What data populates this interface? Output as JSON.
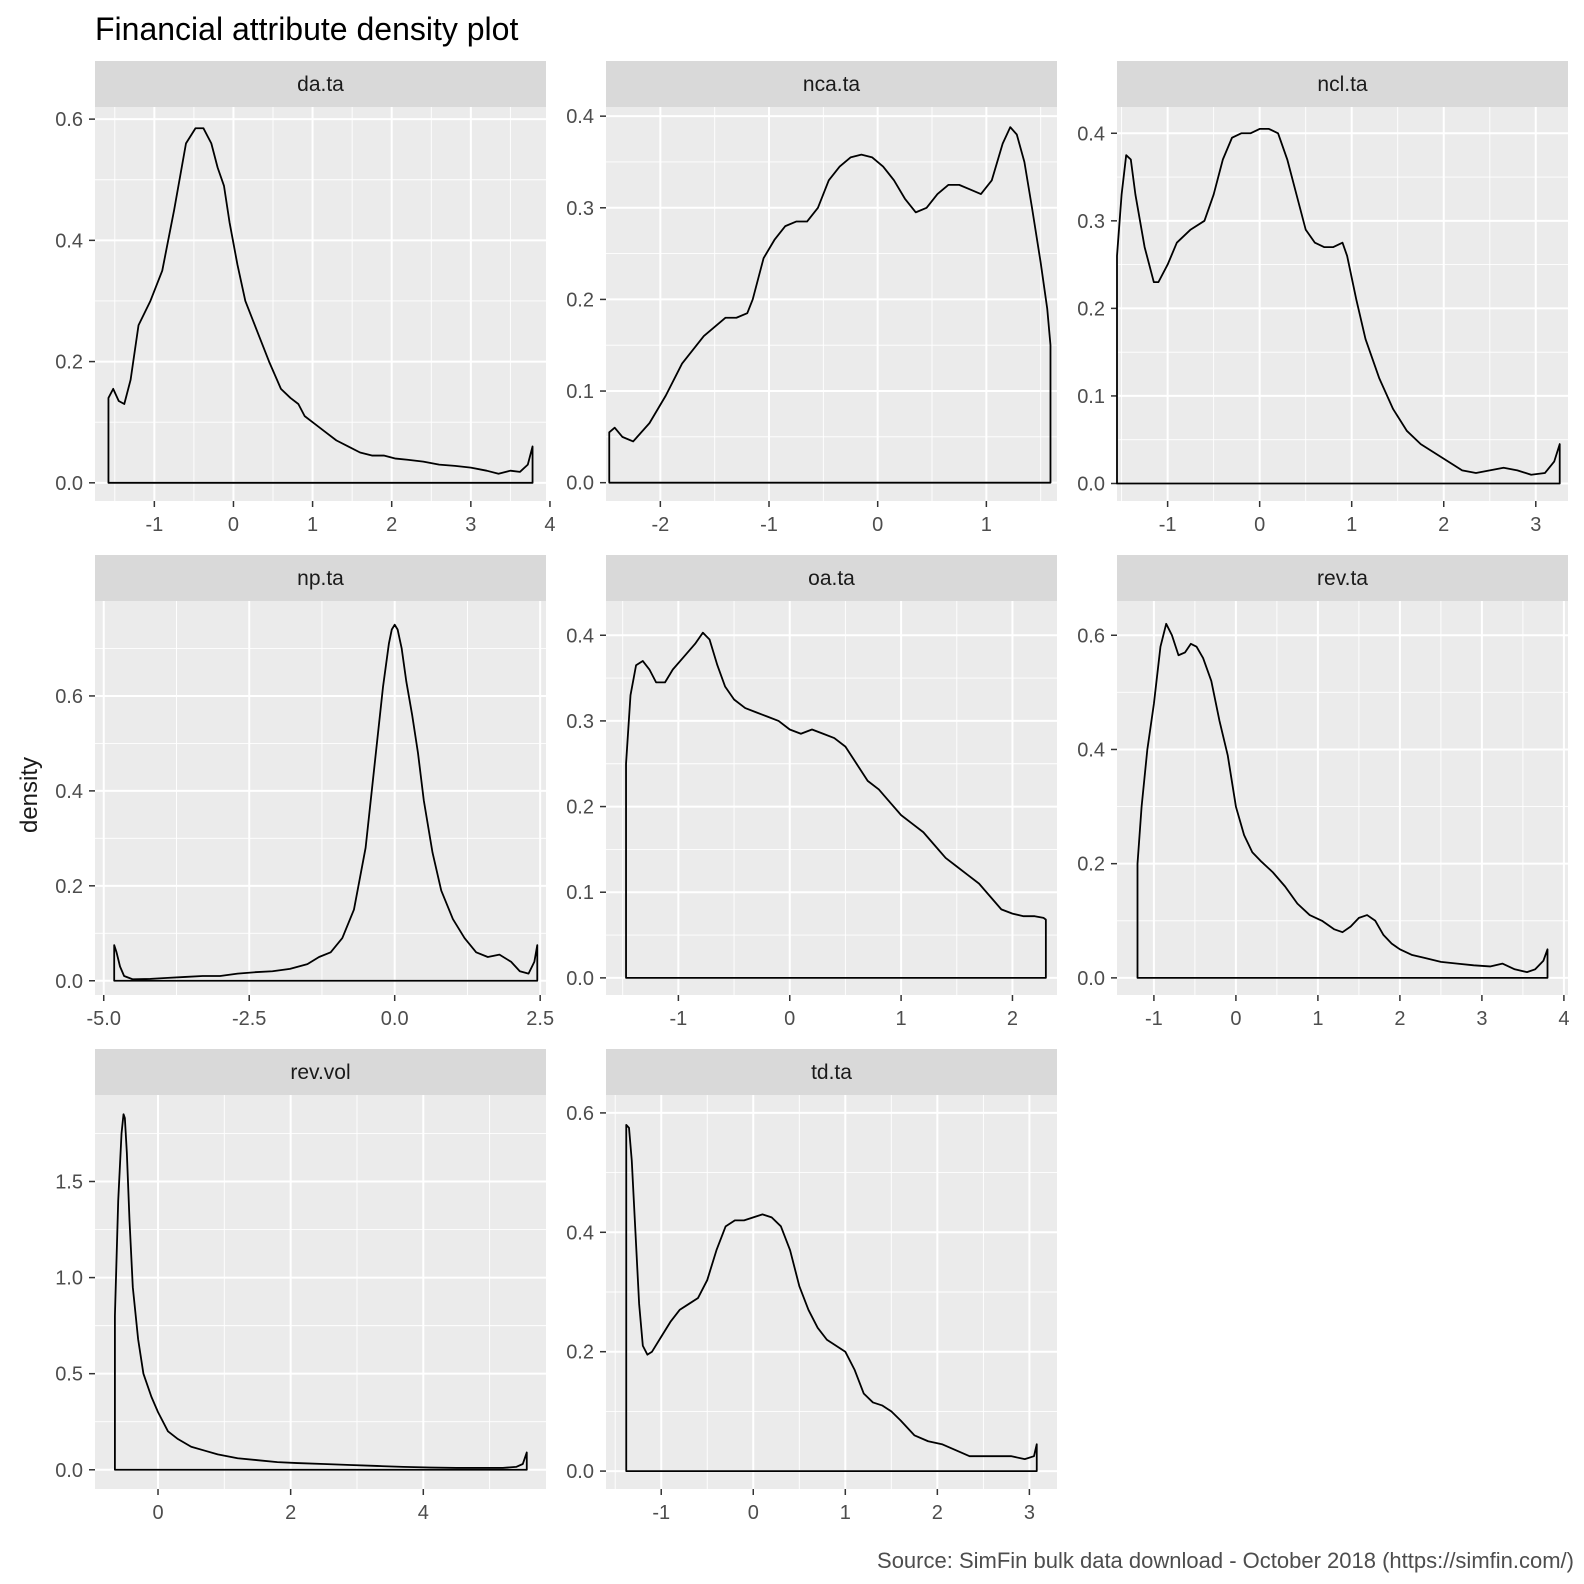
{
  "chart_data": {
    "type": "line",
    "title": "Financial attribute density plot",
    "ylabel": "density",
    "xlabel": "",
    "caption": "Source: SimFin bulk data download - October 2018 (https://simfin.com/)",
    "grid": true,
    "legend": "none",
    "colors": {
      "panel_bg": "#EBEBEB",
      "strip_bg": "#D9D9D9",
      "grid": "#FFFFFF",
      "line": "#000000",
      "tick_text": "#4D4D4D",
      "tick_mark": "#333333"
    },
    "panels": [
      {
        "name": "da.ta",
        "xlim": [
          -1.75,
          3.95
        ],
        "ylim": [
          -0.03,
          0.62
        ],
        "xticks": [
          -1,
          0,
          1,
          2,
          3,
          4
        ],
        "xtick_labels": [
          "-1",
          "0",
          "1",
          "2",
          "3",
          "4"
        ],
        "yticks": [
          0,
          0.2,
          0.4,
          0.6
        ],
        "ytick_labels": [
          "0.0",
          "0.2",
          "0.4",
          "0.6"
        ],
        "x": [
          -1.58,
          -1.58,
          -1.52,
          -1.45,
          -1.38,
          -1.3,
          -1.2,
          -1.05,
          -0.9,
          -0.75,
          -0.6,
          -0.48,
          -0.38,
          -0.28,
          -0.2,
          -0.12,
          -0.05,
          0.05,
          0.15,
          0.3,
          0.45,
          0.6,
          0.72,
          0.82,
          0.9,
          1.0,
          1.15,
          1.3,
          1.45,
          1.6,
          1.75,
          1.9,
          2.05,
          2.2,
          2.4,
          2.6,
          2.8,
          3.0,
          3.2,
          3.35,
          3.5,
          3.62,
          3.72,
          3.78,
          3.78
        ],
        "y": [
          0,
          0.14,
          0.155,
          0.135,
          0.13,
          0.17,
          0.26,
          0.3,
          0.35,
          0.45,
          0.56,
          0.585,
          0.585,
          0.56,
          0.52,
          0.49,
          0.43,
          0.36,
          0.3,
          0.25,
          0.2,
          0.155,
          0.14,
          0.13,
          0.11,
          0.1,
          0.085,
          0.07,
          0.06,
          0.05,
          0.045,
          0.045,
          0.04,
          0.038,
          0.035,
          0.03,
          0.028,
          0.025,
          0.02,
          0.015,
          0.02,
          0.018,
          0.03,
          0.06,
          0
        ]
      },
      {
        "name": "nca.ta",
        "xlim": [
          -2.5,
          1.65
        ],
        "ylim": [
          -0.02,
          0.41
        ],
        "xticks": [
          -2,
          -1,
          0,
          1
        ],
        "xtick_labels": [
          "-2",
          "-1",
          "0",
          "1"
        ],
        "yticks": [
          0,
          0.1,
          0.2,
          0.3,
          0.4
        ],
        "ytick_labels": [
          "0.0",
          "0.1",
          "0.2",
          "0.3",
          "0.4"
        ],
        "x": [
          -2.47,
          -2.47,
          -2.42,
          -2.35,
          -2.25,
          -2.1,
          -1.95,
          -1.8,
          -1.6,
          -1.4,
          -1.3,
          -1.2,
          -1.15,
          -1.05,
          -0.95,
          -0.85,
          -0.75,
          -0.65,
          -0.55,
          -0.45,
          -0.35,
          -0.25,
          -0.15,
          -0.05,
          0.05,
          0.15,
          0.25,
          0.35,
          0.45,
          0.55,
          0.65,
          0.75,
          0.85,
          0.95,
          1.05,
          1.15,
          1.22,
          1.28,
          1.35,
          1.42,
          1.5,
          1.56,
          1.59,
          1.59
        ],
        "y": [
          0,
          0.055,
          0.06,
          0.05,
          0.045,
          0.065,
          0.095,
          0.13,
          0.16,
          0.18,
          0.18,
          0.185,
          0.2,
          0.245,
          0.265,
          0.28,
          0.285,
          0.285,
          0.3,
          0.33,
          0.345,
          0.355,
          0.358,
          0.355,
          0.345,
          0.33,
          0.31,
          0.295,
          0.3,
          0.315,
          0.325,
          0.325,
          0.32,
          0.315,
          0.33,
          0.37,
          0.388,
          0.38,
          0.35,
          0.3,
          0.24,
          0.19,
          0.15,
          0
        ]
      },
      {
        "name": "ncl.ta",
        "xlim": [
          -1.55,
          3.35
        ],
        "ylim": [
          -0.02,
          0.43
        ],
        "xticks": [
          -1,
          0,
          1,
          2,
          3
        ],
        "xtick_labels": [
          "-1",
          "0",
          "1",
          "2",
          "3"
        ],
        "yticks": [
          0,
          0.1,
          0.2,
          0.3,
          0.4
        ],
        "ytick_labels": [
          "0.0",
          "0.1",
          "0.2",
          "0.3",
          "0.4"
        ],
        "x": [
          -1.55,
          -1.55,
          -1.5,
          -1.45,
          -1.4,
          -1.35,
          -1.25,
          -1.15,
          -1.1,
          -1.0,
          -0.9,
          -0.75,
          -0.6,
          -0.5,
          -0.4,
          -0.3,
          -0.2,
          -0.1,
          0.0,
          0.1,
          0.2,
          0.3,
          0.4,
          0.5,
          0.6,
          0.7,
          0.8,
          0.9,
          0.95,
          1.05,
          1.15,
          1.3,
          1.45,
          1.6,
          1.75,
          1.9,
          2.05,
          2.2,
          2.35,
          2.5,
          2.65,
          2.8,
          2.95,
          3.1,
          3.2,
          3.26,
          3.26
        ],
        "y": [
          0,
          0.26,
          0.33,
          0.375,
          0.37,
          0.33,
          0.27,
          0.23,
          0.23,
          0.25,
          0.275,
          0.29,
          0.3,
          0.33,
          0.37,
          0.395,
          0.4,
          0.4,
          0.405,
          0.405,
          0.4,
          0.37,
          0.33,
          0.29,
          0.275,
          0.27,
          0.27,
          0.275,
          0.26,
          0.21,
          0.165,
          0.12,
          0.085,
          0.06,
          0.045,
          0.035,
          0.025,
          0.015,
          0.012,
          0.015,
          0.018,
          0.015,
          0.01,
          0.012,
          0.025,
          0.045,
          0
        ]
      },
      {
        "name": "np.ta",
        "xlim": [
          -5.15,
          2.6
        ],
        "ylim": [
          -0.03,
          0.8
        ],
        "xticks": [
          -5,
          -2.5,
          0,
          2.5
        ],
        "xtick_labels": [
          "-5.0",
          "-2.5",
          "0.0",
          "2.5"
        ],
        "yticks": [
          0,
          0.2,
          0.4,
          0.6
        ],
        "ytick_labels": [
          "0.0",
          "0.2",
          "0.4",
          "0.6"
        ],
        "x": [
          -4.82,
          -4.82,
          -4.78,
          -4.72,
          -4.65,
          -4.5,
          -4.2,
          -3.9,
          -3.6,
          -3.3,
          -3.0,
          -2.7,
          -2.4,
          -2.1,
          -1.8,
          -1.5,
          -1.3,
          -1.1,
          -0.9,
          -0.7,
          -0.5,
          -0.35,
          -0.2,
          -0.1,
          -0.05,
          0.0,
          0.05,
          0.12,
          0.2,
          0.3,
          0.4,
          0.5,
          0.65,
          0.8,
          1.0,
          1.2,
          1.4,
          1.6,
          1.8,
          2.0,
          2.15,
          2.3,
          2.4,
          2.45,
          2.45
        ],
        "y": [
          0,
          0.075,
          0.06,
          0.03,
          0.01,
          0.003,
          0.004,
          0.006,
          0.008,
          0.01,
          0.01,
          0.015,
          0.018,
          0.02,
          0.025,
          0.035,
          0.05,
          0.06,
          0.09,
          0.15,
          0.28,
          0.45,
          0.62,
          0.71,
          0.74,
          0.75,
          0.74,
          0.7,
          0.63,
          0.56,
          0.48,
          0.38,
          0.27,
          0.19,
          0.13,
          0.09,
          0.06,
          0.05,
          0.055,
          0.04,
          0.02,
          0.015,
          0.04,
          0.075,
          0
        ]
      },
      {
        "name": "oa.ta",
        "xlim": [
          -1.65,
          2.4
        ],
        "ylim": [
          -0.02,
          0.44
        ],
        "xticks": [
          -1,
          0,
          1,
          2
        ],
        "xtick_labels": [
          "-1",
          "0",
          "1",
          "2"
        ],
        "yticks": [
          0,
          0.1,
          0.2,
          0.3,
          0.4
        ],
        "ytick_labels": [
          "0.0",
          "0.1",
          "0.2",
          "0.3",
          "0.4"
        ],
        "x": [
          -1.47,
          -1.47,
          -1.43,
          -1.38,
          -1.32,
          -1.26,
          -1.2,
          -1.12,
          -1.05,
          -0.95,
          -0.85,
          -0.78,
          -0.72,
          -0.65,
          -0.58,
          -0.5,
          -0.4,
          -0.3,
          -0.2,
          -0.1,
          0.0,
          0.1,
          0.2,
          0.3,
          0.4,
          0.5,
          0.6,
          0.7,
          0.8,
          0.9,
          1.0,
          1.1,
          1.2,
          1.3,
          1.4,
          1.5,
          1.6,
          1.7,
          1.8,
          1.9,
          2.0,
          2.1,
          2.2,
          2.28,
          2.3,
          2.3
        ],
        "y": [
          0,
          0.25,
          0.33,
          0.365,
          0.37,
          0.36,
          0.345,
          0.345,
          0.36,
          0.375,
          0.39,
          0.403,
          0.395,
          0.365,
          0.34,
          0.325,
          0.315,
          0.31,
          0.305,
          0.3,
          0.29,
          0.285,
          0.29,
          0.285,
          0.28,
          0.27,
          0.25,
          0.23,
          0.22,
          0.205,
          0.19,
          0.18,
          0.17,
          0.155,
          0.14,
          0.13,
          0.12,
          0.11,
          0.095,
          0.08,
          0.075,
          0.072,
          0.072,
          0.07,
          0.068,
          0
        ]
      },
      {
        "name": "rev.ta",
        "xlim": [
          -1.45,
          4.05
        ],
        "ylim": [
          -0.03,
          0.66
        ],
        "xticks": [
          -1,
          0,
          1,
          2,
          3,
          4
        ],
        "xtick_labels": [
          "-1",
          "0",
          "1",
          "2",
          "3",
          "4"
        ],
        "yticks": [
          0,
          0.2,
          0.4,
          0.6
        ],
        "ytick_labels": [
          "0.0",
          "0.2",
          "0.4",
          "0.6"
        ],
        "x": [
          -1.2,
          -1.2,
          -1.15,
          -1.08,
          -1.0,
          -0.92,
          -0.85,
          -0.78,
          -0.7,
          -0.62,
          -0.55,
          -0.48,
          -0.4,
          -0.3,
          -0.2,
          -0.1,
          0.0,
          0.1,
          0.2,
          0.3,
          0.45,
          0.6,
          0.75,
          0.9,
          1.05,
          1.2,
          1.3,
          1.4,
          1.5,
          1.6,
          1.7,
          1.8,
          1.9,
          2.0,
          2.15,
          2.3,
          2.5,
          2.7,
          2.9,
          3.1,
          3.25,
          3.4,
          3.55,
          3.65,
          3.75,
          3.8,
          3.8
        ],
        "y": [
          0,
          0.2,
          0.3,
          0.4,
          0.48,
          0.58,
          0.62,
          0.6,
          0.565,
          0.57,
          0.585,
          0.58,
          0.56,
          0.52,
          0.45,
          0.39,
          0.3,
          0.25,
          0.22,
          0.205,
          0.185,
          0.16,
          0.13,
          0.11,
          0.1,
          0.085,
          0.08,
          0.09,
          0.105,
          0.11,
          0.1,
          0.075,
          0.06,
          0.05,
          0.04,
          0.035,
          0.028,
          0.025,
          0.022,
          0.02,
          0.025,
          0.015,
          0.01,
          0.015,
          0.03,
          0.05,
          0
        ]
      },
      {
        "name": "rev.vol",
        "xlim": [
          -0.95,
          5.85
        ],
        "ylim": [
          -0.1,
          1.95
        ],
        "xticks": [
          0,
          2,
          4
        ],
        "xtick_labels": [
          "0",
          "2",
          "4"
        ],
        "yticks": [
          0,
          0.5,
          1.0,
          1.5
        ],
        "ytick_labels": [
          "0.0",
          "0.5",
          "1.0",
          "1.5"
        ],
        "x": [
          -0.65,
          -0.65,
          -0.6,
          -0.55,
          -0.52,
          -0.5,
          -0.47,
          -0.43,
          -0.38,
          -0.3,
          -0.22,
          -0.1,
          0.0,
          0.15,
          0.3,
          0.5,
          0.7,
          0.9,
          1.2,
          1.5,
          1.8,
          2.1,
          2.5,
          2.9,
          3.3,
          3.7,
          4.1,
          4.5,
          4.9,
          5.2,
          5.4,
          5.5,
          5.56,
          5.56
        ],
        "y": [
          0,
          0.8,
          1.4,
          1.75,
          1.85,
          1.83,
          1.65,
          1.3,
          0.95,
          0.68,
          0.5,
          0.38,
          0.3,
          0.2,
          0.16,
          0.12,
          0.1,
          0.08,
          0.06,
          0.05,
          0.04,
          0.035,
          0.03,
          0.025,
          0.02,
          0.015,
          0.012,
          0.01,
          0.01,
          0.01,
          0.015,
          0.03,
          0.09,
          0
        ]
      },
      {
        "name": "td.ta",
        "xlim": [
          -1.6,
          3.3
        ],
        "ylim": [
          -0.03,
          0.63
        ],
        "xticks": [
          -1,
          0,
          1,
          2,
          3
        ],
        "xtick_labels": [
          "-1",
          "0",
          "1",
          "2",
          "3"
        ],
        "yticks": [
          0,
          0.2,
          0.4,
          0.6
        ],
        "ytick_labels": [
          "0.0",
          "0.2",
          "0.4",
          "0.6"
        ],
        "x": [
          -1.38,
          -1.38,
          -1.35,
          -1.32,
          -1.28,
          -1.24,
          -1.2,
          -1.15,
          -1.1,
          -1.0,
          -0.9,
          -0.8,
          -0.7,
          -0.6,
          -0.5,
          -0.4,
          -0.3,
          -0.2,
          -0.1,
          0.0,
          0.1,
          0.2,
          0.3,
          0.4,
          0.5,
          0.6,
          0.7,
          0.8,
          0.9,
          1.0,
          1.1,
          1.2,
          1.3,
          1.4,
          1.5,
          1.6,
          1.75,
          1.9,
          2.05,
          2.2,
          2.35,
          2.5,
          2.65,
          2.8,
          2.95,
          3.05,
          3.08,
          3.08
        ],
        "y": [
          0,
          0.58,
          0.575,
          0.52,
          0.4,
          0.28,
          0.21,
          0.195,
          0.2,
          0.225,
          0.25,
          0.27,
          0.28,
          0.29,
          0.32,
          0.37,
          0.41,
          0.42,
          0.42,
          0.425,
          0.43,
          0.425,
          0.41,
          0.37,
          0.31,
          0.27,
          0.24,
          0.22,
          0.21,
          0.2,
          0.17,
          0.13,
          0.115,
          0.11,
          0.1,
          0.085,
          0.06,
          0.05,
          0.045,
          0.035,
          0.025,
          0.025,
          0.025,
          0.025,
          0.02,
          0.025,
          0.045,
          0
        ]
      }
    ]
  }
}
